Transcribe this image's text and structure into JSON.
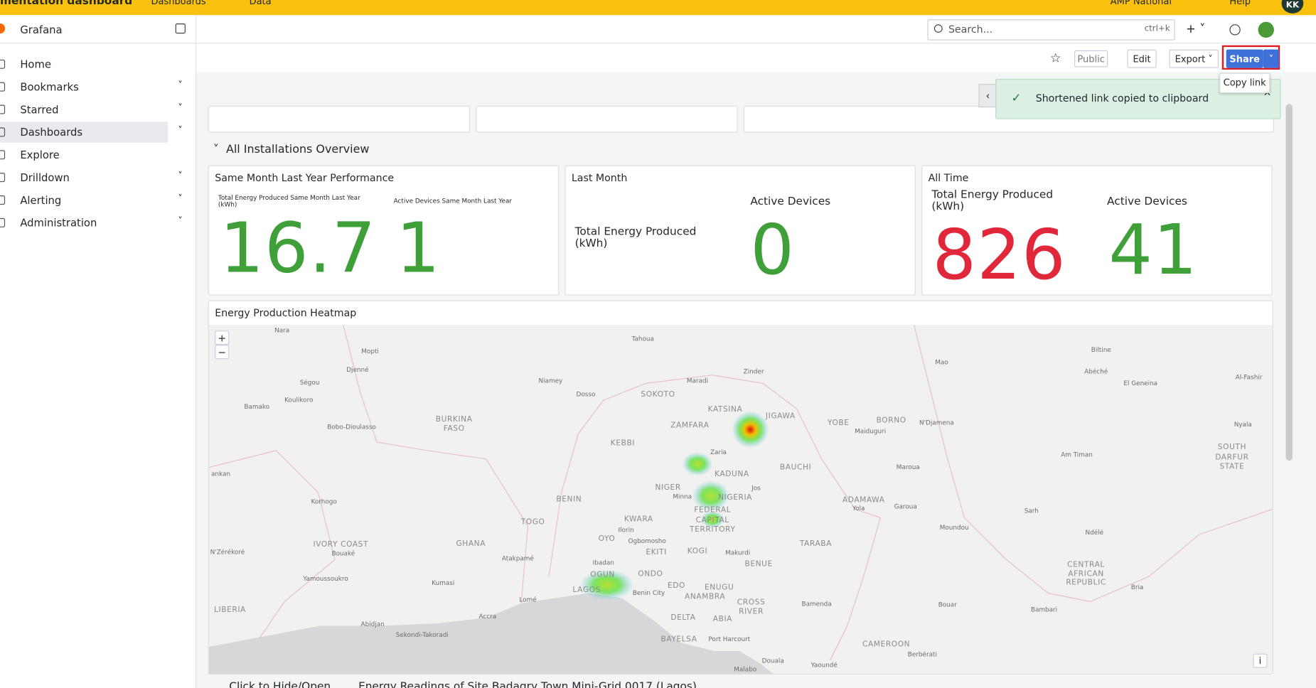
{
  "topbar": {
    "dashboard": "mentation dashboard",
    "links": [
      "Dashboards",
      "Data"
    ],
    "org": "AMP National",
    "help": "Help",
    "avatar": "KK"
  },
  "sidebar": {
    "brand": "Grafana",
    "items": [
      "Home",
      "Bookmarks",
      "Starred",
      "Dashboards",
      "Explore",
      "Drilldown",
      "Alerting",
      "Administration"
    ]
  },
  "search": {
    "placeholder": "Search...",
    "shortcut": "ctrl+k"
  },
  "toolbar": {
    "public": "Public",
    "edit": "Edit",
    "export": "Export",
    "share": "Share",
    "tooltip": "Copy link"
  },
  "toast": "Shortened link copied to clipboard",
  "row": "All Installations Overview",
  "panels": [
    {
      "title": "Same Month Last Year Performance",
      "stats": [
        {
          "label": "Total Energy Produced Same Month Last Year (kWh)",
          "value": 16.7
        },
        {
          "label": "Active Devices Same Month Last Year",
          "value": 1
        }
      ]
    },
    {
      "title": "Last Month",
      "stats": [
        {
          "label": "Total Energy Produced (kWh)",
          "value": null
        },
        {
          "label": "Active Devices",
          "value": 0
        }
      ]
    },
    {
      "title": "All Time",
      "stats": [
        {
          "label": "Total Energy Produced (kWh)",
          "value": 826
        },
        {
          "label": "Active Devices",
          "value": 41
        }
      ]
    }
  ],
  "heatmap": {
    "title": "Energy Production Heatmap",
    "labels": [
      "Nara",
      "Mopti",
      "Djenné",
      "Ségou",
      "Koulikoro",
      "Bamako",
      "Tahoua",
      "Zinder",
      "Maradi",
      "Niamey",
      "Dosso",
      "SOKOTO",
      "KATSINA",
      "JIGAWA",
      "YOBE",
      "BORNO",
      "Maiduguri",
      "ZAMFARA",
      "BURKINA",
      "FASO",
      "KEBBI",
      "Zaria",
      "KADUNA",
      "BAUCHI",
      "Bobo-Dioulasso",
      "ankan",
      "Korhogo",
      "NIGER",
      "Minna",
      "NIGERIA",
      "Jos",
      "FEDERAL",
      "CAPITAL",
      "TERRITORY",
      "ADAMAWA",
      "Yola",
      "Garoua",
      "BENIN",
      "TOGO",
      "KWARA",
      "Ilorin",
      "Ogbomosho",
      "OYO",
      "EKITI",
      "KOGI",
      "Makurdi",
      "BENUE",
      "TARABA",
      "GHANA",
      "IVORY COAST",
      "Bouaké",
      "N'Zérékoré",
      "Atakpamé",
      "Ibadan",
      "OGUN",
      "ONDO",
      "LAGOS",
      "Benin City",
      "EDO",
      "ENUGU",
      "ANAMBRA",
      "CROSS",
      "RIVER",
      "Yamoussoukro",
      "Kumasi",
      "Lomé",
      "Bamenda",
      "LIBERIA",
      "Accra",
      "Abidjan",
      "Sekondi-Takoradi",
      "DELTA",
      "ABIA",
      "BAYELSA",
      "Port Harcourt",
      "CAMEROON",
      "Douala",
      "Yaoundé",
      "Malabo",
      "Berbérati",
      "Bouar",
      "Bambari",
      "Bria",
      "CENTRAL",
      "AFRICAN",
      "REPUBLIC",
      "Ndélé",
      "Moundou",
      "Sarh",
      "Am Timan",
      "SOUTH",
      "DARFUR",
      "STATE",
      "Nyala",
      "N'Djamena",
      "Maroua",
      "Mao",
      "Abéché",
      "El Geneina",
      "Al-Fashir",
      "Biltine"
    ]
  },
  "footer": [
    "Click to Hide/Open",
    "Energy Readings of Site Badagry Town Mini-Grid 0017 (Lagos)"
  ]
}
